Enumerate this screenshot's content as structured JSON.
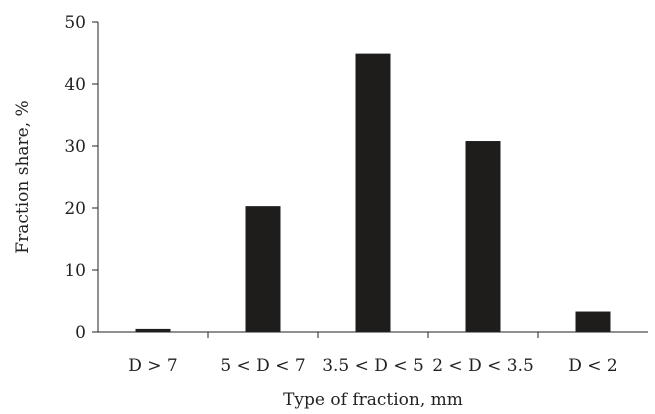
{
  "chart_data": {
    "type": "bar",
    "categories": [
      "D > 7",
      "5 < D < 7",
      "3.5 < D < 5",
      "2 < D < 3.5",
      "D < 2"
    ],
    "values": [
      0.5,
      20.3,
      44.9,
      30.8,
      3.3
    ],
    "xlabel": "Type of fraction, mm",
    "ylabel": "Fraction share, %",
    "ylim": [
      0,
      50
    ],
    "yticks": [
      0,
      10,
      20,
      30,
      40,
      50
    ],
    "grid": false,
    "colors": {
      "bar": "#1f1c1c",
      "axis": "#222222"
    }
  }
}
